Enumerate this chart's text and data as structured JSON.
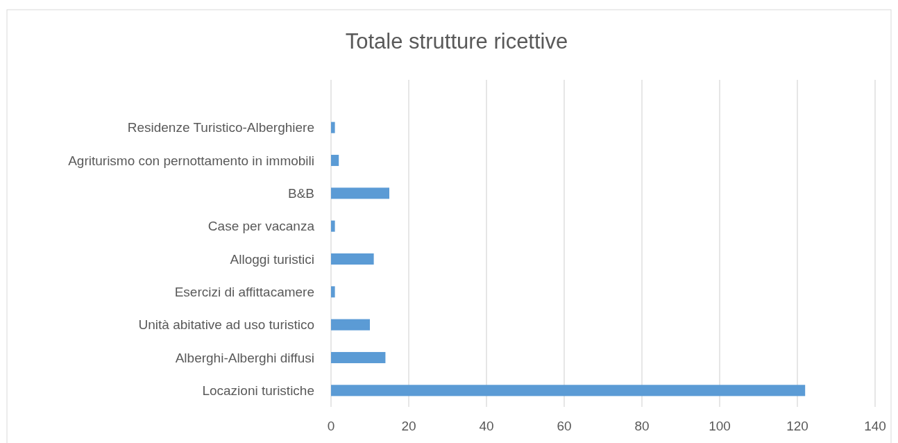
{
  "chart_data": {
    "type": "bar",
    "orientation": "horizontal",
    "title": "Totale strutture ricettive",
    "categories": [
      "Residenze Turistico-Alberghiere",
      "Agriturismo con pernottamento in immobili",
      "B&B",
      "Case per vacanza",
      "Alloggi turistici",
      "Esercizi di affittacamere",
      "Unità abitative ad uso turistico",
      "Alberghi-Alberghi diffusi",
      "Locazioni turistiche"
    ],
    "values": [
      1,
      2,
      15,
      1,
      11,
      1,
      10,
      14,
      122
    ],
    "color": "#5b9bd5",
    "xlim": [
      0,
      140
    ],
    "xticks": [
      0,
      20,
      40,
      60,
      80,
      100,
      120,
      140
    ],
    "grid": "x"
  }
}
